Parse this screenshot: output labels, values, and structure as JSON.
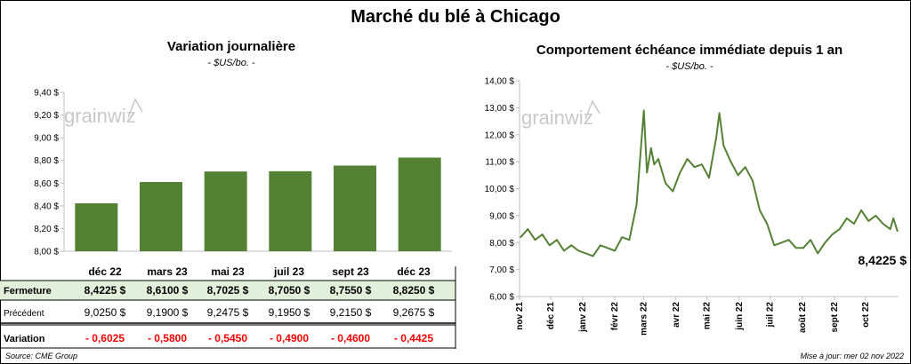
{
  "main_title": "Marché du blé à Chicago",
  "left_panel": {
    "title": "Variation  journalière",
    "subtitle": "- $US/bo. -"
  },
  "right_panel": {
    "title": "Comportement  échéance immédiate depuis 1 an",
    "subtitle": "- $US/bo. -"
  },
  "watermark": "grainwiz",
  "footer": {
    "source": "Source: CME Group",
    "updated": "Mise à jour: mer 02 nov 2022"
  },
  "colors": {
    "bar": "#548235",
    "line": "#548235",
    "row_highlight": "#e2efda",
    "negative": "#ff0000"
  },
  "chart_data": [
    {
      "type": "bar",
      "title": "Variation  journalière",
      "subtitle": "- $US/bo. -",
      "ylim": [
        8.0,
        9.4
      ],
      "yticks": [
        "8,00 $",
        "8,20 $",
        "8,40 $",
        "8,60 $",
        "8,80 $",
        "9,00 $",
        "9,20 $",
        "9,40 $"
      ],
      "ytick_values": [
        8.0,
        8.2,
        8.4,
        8.6,
        8.8,
        9.0,
        9.2,
        9.4
      ],
      "categories": [
        "déc 22",
        "mars 23",
        "mai 23",
        "juil 23",
        "sept 23",
        "déc 23"
      ],
      "values": [
        8.4225,
        8.61,
        8.7025,
        8.705,
        8.755,
        8.825
      ],
      "table": {
        "rows": [
          {
            "label": "Fermeture",
            "values": [
              "8,4225  $",
              "8,6100  $",
              "8,7025  $",
              "8,7050  $",
              "8,7550  $",
              "8,8250  $"
            ]
          },
          {
            "label": "Précédent",
            "values": [
              "9,0250  $",
              "9,1900  $",
              "9,2475  $",
              "9,1950  $",
              "9,2150  $",
              "9,2675  $"
            ]
          },
          {
            "label": "Variation",
            "values": [
              "- 0,6025",
              "- 0,5800",
              "- 0,5450",
              "- 0,4900",
              "- 0,4600",
              "- 0,4425"
            ]
          }
        ]
      }
    },
    {
      "type": "line",
      "title": "Comportement  échéance immédiate depuis 1 an",
      "subtitle": "- $US/bo. -",
      "ylim": [
        6.0,
        14.0
      ],
      "yticks": [
        "6,00 $",
        "7,00 $",
        "8,00 $",
        "9,00 $",
        "10,00 $",
        "11,00 $",
        "12,00 $",
        "13,00 $",
        "14,00 $"
      ],
      "ytick_values": [
        6,
        7,
        8,
        9,
        10,
        11,
        12,
        13,
        14
      ],
      "xticks": [
        "nov 21",
        "déc 21",
        "janv 22",
        "févr 22",
        "mars 22",
        "avr 22",
        "mai 22",
        "juin 22",
        "juil 22",
        "août 22",
        "sept 22",
        "oct 22"
      ],
      "last_value_label": "8,4225 $",
      "x": [
        "2021-11-02",
        "2021-11-09",
        "2021-11-16",
        "2021-11-23",
        "2021-11-30",
        "2021-12-07",
        "2021-12-14",
        "2021-12-21",
        "2021-12-28",
        "2022-01-04",
        "2022-01-11",
        "2022-01-18",
        "2022-01-25",
        "2022-02-01",
        "2022-02-08",
        "2022-02-15",
        "2022-02-22",
        "2022-02-25",
        "2022-03-01",
        "2022-03-04",
        "2022-03-08",
        "2022-03-11",
        "2022-03-15",
        "2022-03-22",
        "2022-03-29",
        "2022-04-05",
        "2022-04-12",
        "2022-04-19",
        "2022-04-26",
        "2022-05-03",
        "2022-05-10",
        "2022-05-13",
        "2022-05-17",
        "2022-05-24",
        "2022-05-31",
        "2022-06-07",
        "2022-06-14",
        "2022-06-21",
        "2022-06-28",
        "2022-07-05",
        "2022-07-12",
        "2022-07-19",
        "2022-07-26",
        "2022-08-02",
        "2022-08-09",
        "2022-08-16",
        "2022-08-23",
        "2022-08-30",
        "2022-09-06",
        "2022-09-13",
        "2022-09-20",
        "2022-09-27",
        "2022-10-04",
        "2022-10-11",
        "2022-10-18",
        "2022-10-25",
        "2022-10-28",
        "2022-11-01"
      ],
      "y": [
        8.2,
        8.5,
        8.1,
        8.3,
        7.9,
        8.1,
        7.7,
        7.9,
        7.7,
        7.6,
        7.5,
        7.9,
        7.8,
        7.7,
        8.2,
        8.1,
        9.4,
        10.9,
        12.9,
        10.6,
        11.5,
        10.9,
        11.1,
        10.2,
        9.9,
        10.6,
        11.1,
        10.8,
        10.9,
        10.4,
        11.9,
        12.8,
        11.6,
        11.0,
        10.5,
        10.8,
        10.3,
        9.2,
        8.7,
        7.9,
        8.0,
        8.1,
        7.8,
        7.8,
        8.1,
        7.6,
        8.0,
        8.3,
        8.5,
        8.9,
        8.7,
        9.2,
        8.8,
        9.0,
        8.7,
        8.5,
        8.9,
        8.4225
      ]
    }
  ]
}
